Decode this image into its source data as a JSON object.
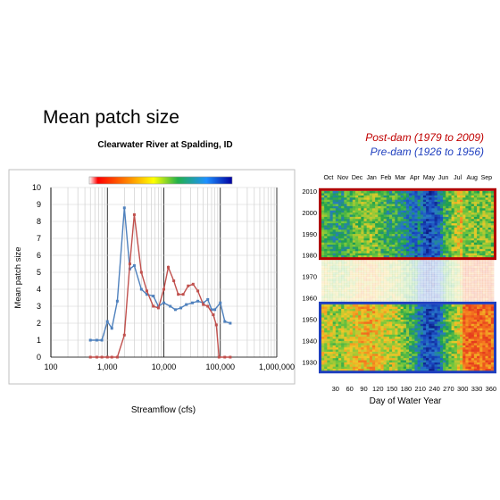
{
  "slide": {
    "title": "Mean patch size",
    "legend_post": "Post-dam (1979 to 2009)",
    "legend_pre": "Pre-dam (1926 to 1956)"
  },
  "colors": {
    "post_dam": "#c0504d",
    "pre_dam": "#4f81bd",
    "post_frame": "#b00000",
    "pre_frame": "#1f3fbf"
  },
  "chart_data": [
    {
      "type": "line",
      "title": "Clearwater River at Spalding, ID",
      "xlabel": "Streamflow (cfs)",
      "ylabel": "Mean patch size",
      "x_scale": "log",
      "xlim": [
        100,
        1000000
      ],
      "ylim": [
        0,
        10
      ],
      "x_ticks": [
        100,
        1000,
        10000,
        100000,
        1000000
      ],
      "x_tick_labels": [
        "100",
        "1,000",
        "10,000",
        "100,000",
        "1,000,000"
      ],
      "y_ticks": [
        0,
        1,
        2,
        3,
        4,
        5,
        6,
        7,
        8,
        9,
        10
      ],
      "grid": true,
      "colorbar": "rainbow red-to-blue above plot",
      "series": [
        {
          "color": "#4f81bd",
          "points": [
            [
              500,
              1.0
            ],
            [
              650,
              1.0
            ],
            [
              800,
              1.0
            ],
            [
              1000,
              2.1
            ],
            [
              1200,
              1.7
            ],
            [
              1500,
              3.3
            ],
            [
              2000,
              8.8
            ],
            [
              2500,
              5.2
            ],
            [
              3000,
              5.4
            ],
            [
              4000,
              4.0
            ],
            [
              5000,
              3.7
            ],
            [
              6500,
              3.6
            ],
            [
              8000,
              3.0
            ],
            [
              10000,
              3.2
            ],
            [
              13000,
              3.0
            ],
            [
              16000,
              2.8
            ],
            [
              20000,
              2.9
            ],
            [
              25000,
              3.1
            ],
            [
              32000,
              3.2
            ],
            [
              40000,
              3.3
            ],
            [
              50000,
              3.2
            ],
            [
              60000,
              3.4
            ],
            [
              70000,
              2.8
            ],
            [
              80000,
              2.8
            ],
            [
              100000,
              3.2
            ],
            [
              120000,
              2.1
            ],
            [
              150000,
              2.0
            ]
          ]
        },
        {
          "color": "#c0504d",
          "points": [
            [
              500,
              0
            ],
            [
              650,
              0
            ],
            [
              800,
              0
            ],
            [
              1000,
              0
            ],
            [
              1200,
              0
            ],
            [
              1500,
              0
            ],
            [
              2000,
              1.3
            ],
            [
              2500,
              5.5
            ],
            [
              3000,
              8.4
            ],
            [
              4000,
              5.0
            ],
            [
              5000,
              3.9
            ],
            [
              6500,
              3.0
            ],
            [
              8000,
              2.9
            ],
            [
              10000,
              4.0
            ],
            [
              12000,
              5.3
            ],
            [
              15000,
              4.5
            ],
            [
              18000,
              3.7
            ],
            [
              22000,
              3.7
            ],
            [
              27000,
              4.2
            ],
            [
              33000,
              4.3
            ],
            [
              40000,
              3.9
            ],
            [
              50000,
              3.1
            ],
            [
              60000,
              3.0
            ],
            [
              75000,
              2.5
            ],
            [
              85000,
              1.9
            ],
            [
              95000,
              0
            ],
            [
              120000,
              0
            ],
            [
              150000,
              0
            ]
          ]
        }
      ]
    },
    {
      "type": "heatmap",
      "xlabel": "Day of Water Year",
      "ylabel": "",
      "month_labels": [
        "Oct",
        "Nov",
        "Dec",
        "Jan",
        "Feb",
        "Mar",
        "Apr",
        "May",
        "Jun",
        "Jul",
        "Aug",
        "Sep"
      ],
      "x_ticks": [
        30,
        60,
        90,
        120,
        150,
        180,
        210,
        240,
        270,
        300,
        330,
        360
      ],
      "xlim": [
        0,
        366
      ],
      "y_ticks": [
        1930,
        1940,
        1950,
        1960,
        1970,
        1980,
        1990,
        2000,
        2010
      ],
      "ylim": [
        1926,
        2010
      ],
      "regions": [
        {
          "label": "Post-dam",
          "years": [
            1979,
            2009
          ],
          "color": "#b00000"
        },
        {
          "label": "Pre-dam",
          "years": [
            1926,
            1956
          ],
          "color": "#1f3fbf"
        }
      ]
    }
  ]
}
